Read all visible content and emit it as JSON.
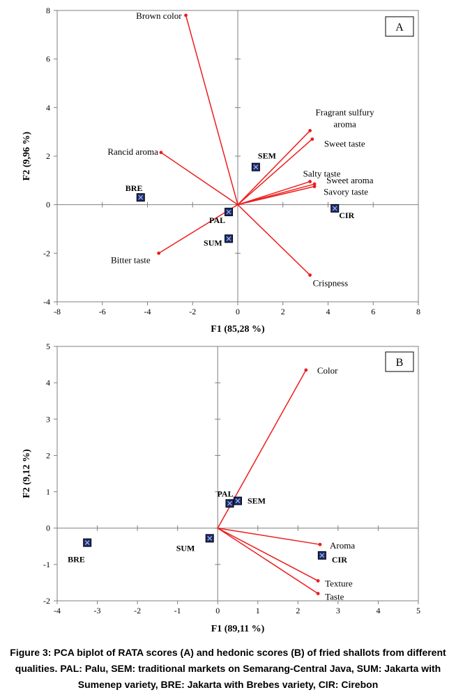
{
  "chart_data": [
    {
      "type": "scatter",
      "subtype": "pca-biplot",
      "panel_label": "A",
      "xlabel": "F1 (85,28 %)",
      "ylabel": "F2 (9,96 %)",
      "xlim": [
        -8,
        8
      ],
      "ylim": [
        -4,
        8
      ],
      "xticks": [
        -8,
        -6,
        -4,
        -2,
        0,
        2,
        4,
        6,
        8
      ],
      "yticks": [
        -4,
        -2,
        0,
        2,
        4,
        6,
        8
      ],
      "grid": false,
      "vector_color": "#ee1c1c",
      "observation_color": "#1f2d6b",
      "variables": [
        {
          "name": "Brown color",
          "x": -2.3,
          "y": 7.8
        },
        {
          "name": "Rancid aroma",
          "x": -3.4,
          "y": 2.15
        },
        {
          "name": "Bitter taste",
          "x": -3.5,
          "y": -2.0
        },
        {
          "name": "Fragrant sulfury aroma",
          "x": 3.2,
          "y": 3.05
        },
        {
          "name": "Sweet taste",
          "x": 3.3,
          "y": 2.7
        },
        {
          "name": "Salty taste",
          "x": 3.2,
          "y": 0.95
        },
        {
          "name": "Sweet aroma",
          "x": 3.4,
          "y": 0.85
        },
        {
          "name": "Savory taste",
          "x": 3.4,
          "y": 0.75
        },
        {
          "name": "Crispness",
          "x": 3.2,
          "y": -2.9
        }
      ],
      "observations": [
        {
          "name": "SEM",
          "x": 0.8,
          "y": 1.55
        },
        {
          "name": "BRE",
          "x": -4.3,
          "y": 0.3
        },
        {
          "name": "PAL",
          "x": -0.4,
          "y": -0.3
        },
        {
          "name": "SUM",
          "x": -0.4,
          "y": -1.4
        },
        {
          "name": "CIR",
          "x": 4.3,
          "y": -0.15
        }
      ]
    },
    {
      "type": "scatter",
      "subtype": "pca-biplot",
      "panel_label": "B",
      "xlabel": "F1 (89,11 %)",
      "ylabel": "F2 (9,12 %)",
      "xlim": [
        -4,
        5
      ],
      "ylim": [
        -2,
        5
      ],
      "xticks": [
        -4,
        -3,
        -2,
        -1,
        0,
        1,
        2,
        3,
        4,
        5
      ],
      "yticks": [
        -2,
        -1,
        0,
        1,
        2,
        3,
        4,
        5
      ],
      "grid": false,
      "vector_color": "#ee1c1c",
      "observation_color": "#1f2d6b",
      "variables": [
        {
          "name": "Color",
          "x": 2.2,
          "y": 4.35
        },
        {
          "name": "Aroma",
          "x": 2.55,
          "y": -0.45
        },
        {
          "name": "Texture",
          "x": 2.5,
          "y": -1.45
        },
        {
          "name": "Taste",
          "x": 2.5,
          "y": -1.8
        }
      ],
      "observations": [
        {
          "name": "PAL",
          "x": 0.3,
          "y": 0.68
        },
        {
          "name": "SEM",
          "x": 0.5,
          "y": 0.75
        },
        {
          "name": "BRE",
          "x": -3.25,
          "y": -0.4
        },
        {
          "name": "SUM",
          "x": -0.2,
          "y": -0.28
        },
        {
          "name": "CIR",
          "x": 2.6,
          "y": -0.75
        }
      ]
    }
  ],
  "caption": "Figure 3: PCA biplot of RATA scores (A) and hedonic scores (B) of fried shallots from different qualities. PAL: Palu, SEM: traditional markets on Semarang-Central Java, SUM: Jakarta with Sumenep variety, BRE: Jakarta with Brebes variety, CIR: Cirebon"
}
